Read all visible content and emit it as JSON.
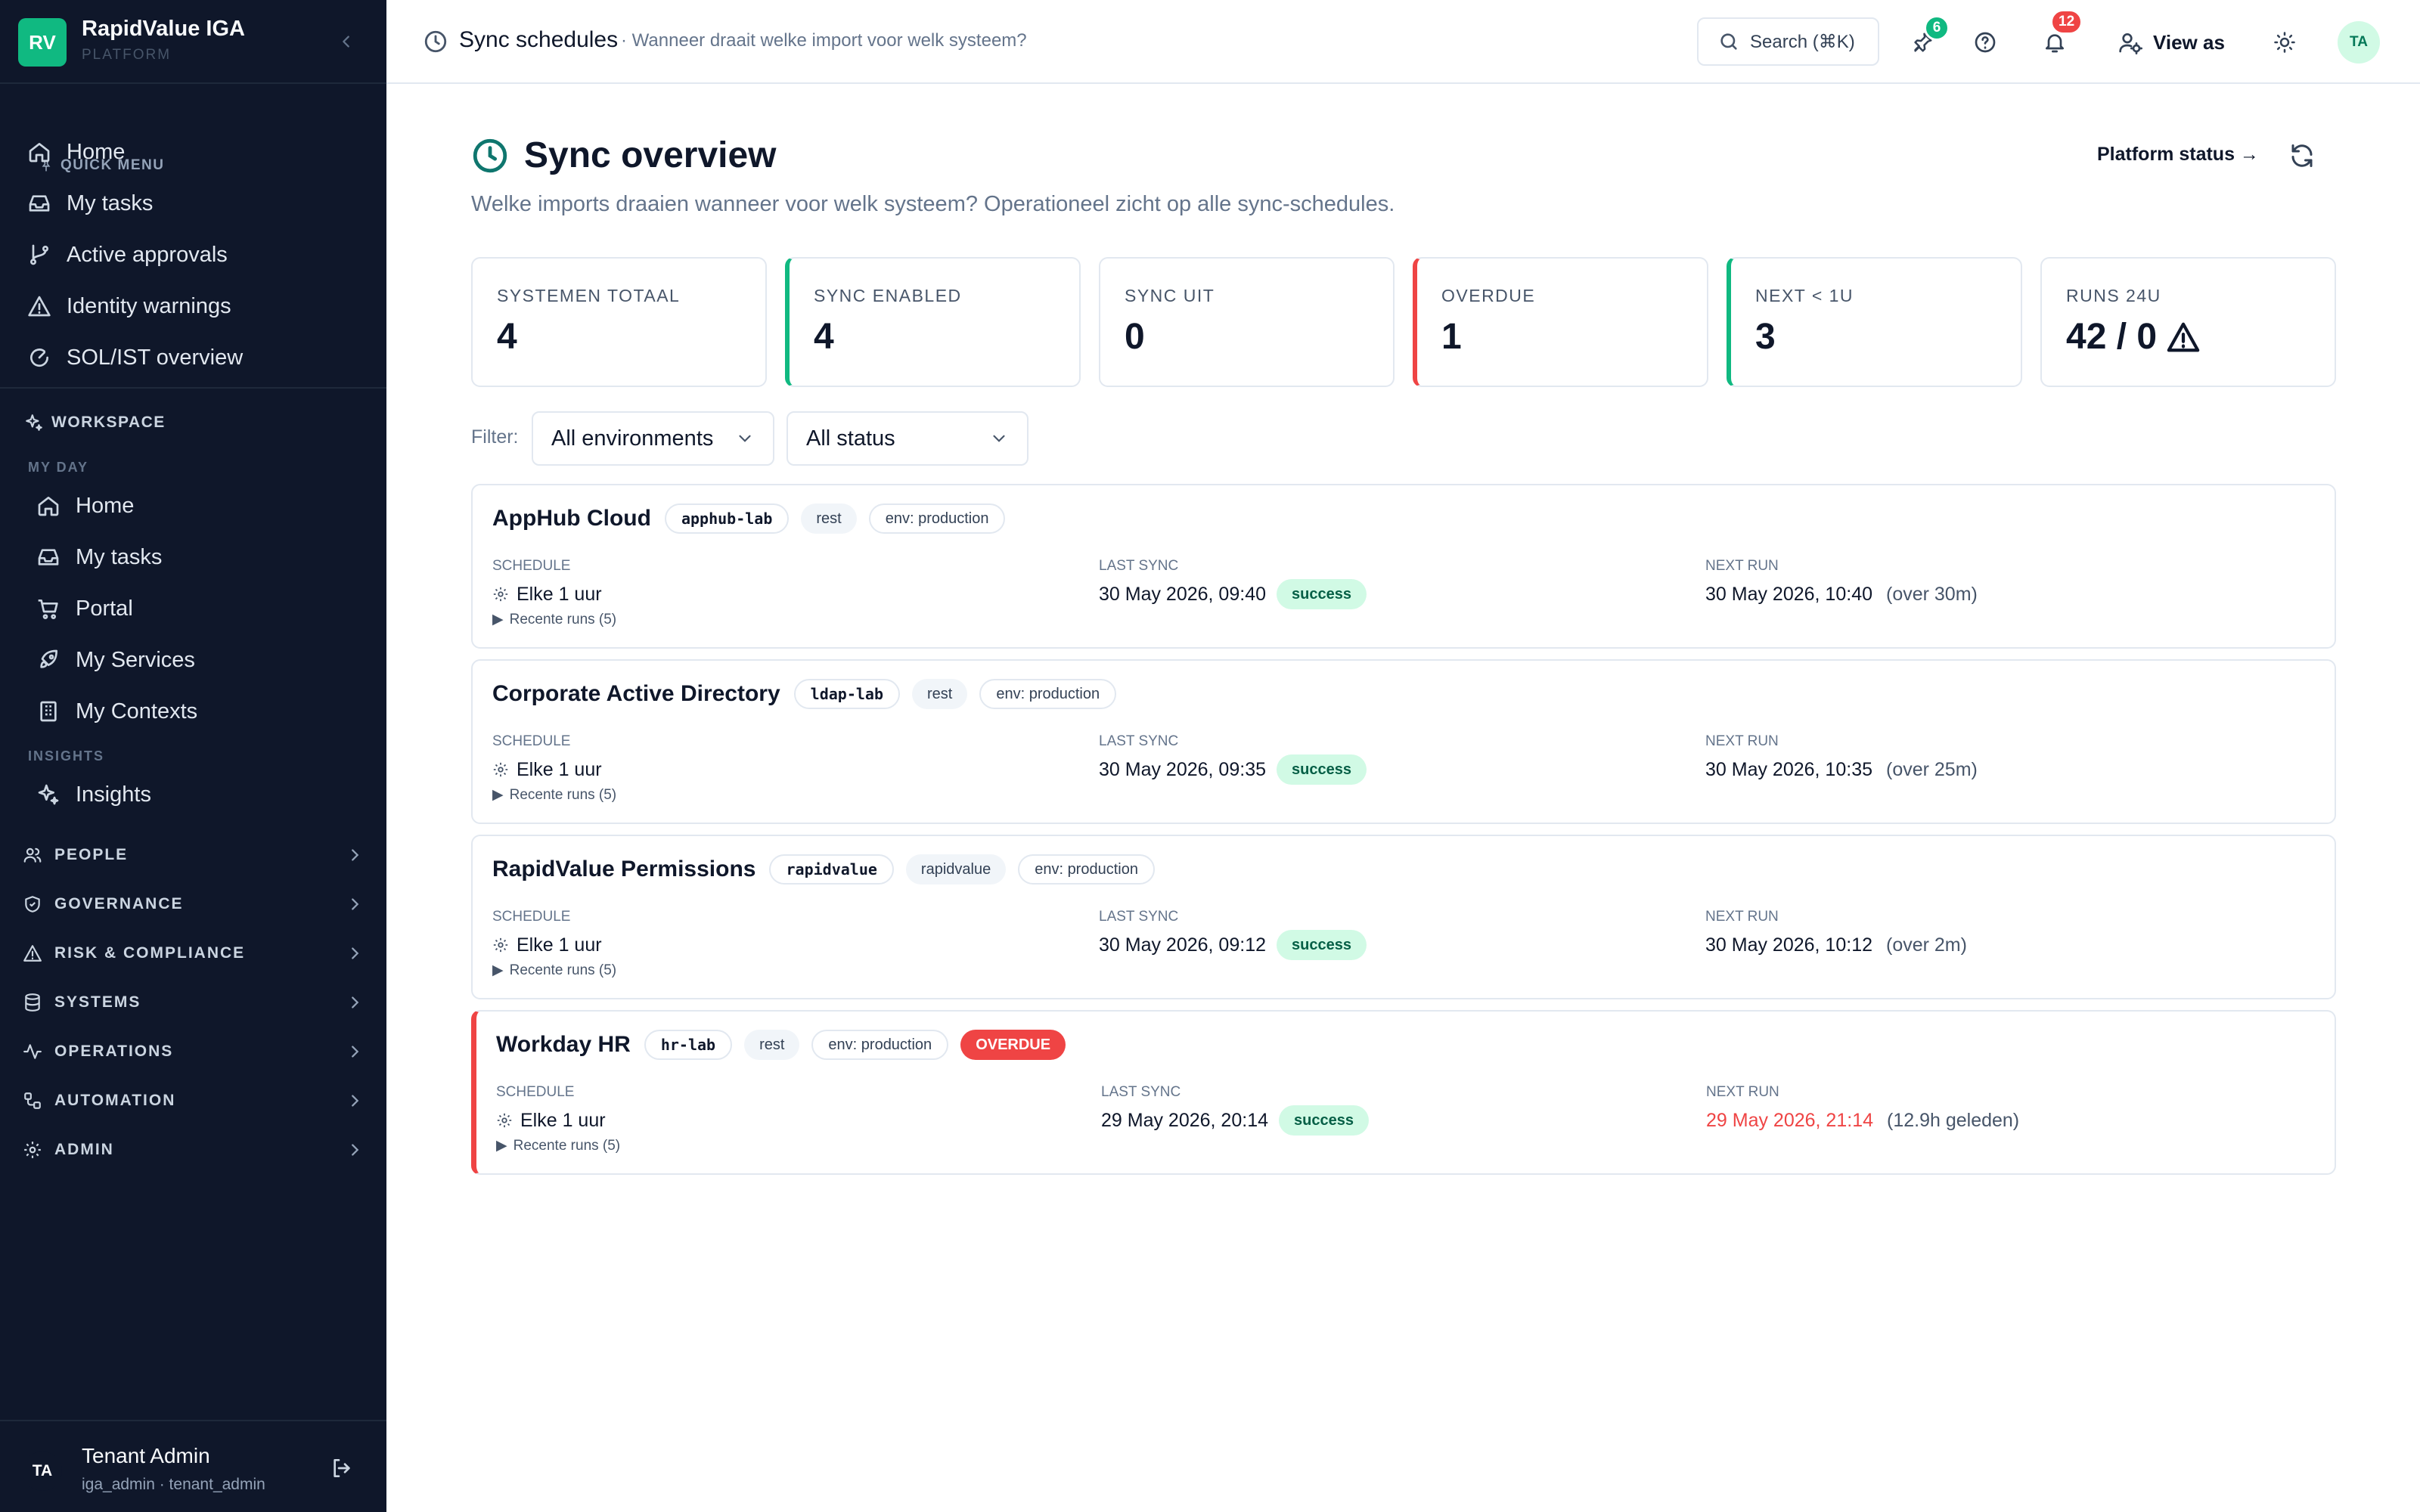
{
  "brand": {
    "logo": "RV",
    "name": "RapidValue IGA",
    "sub": "PLATFORM"
  },
  "quick_menu": {
    "label": "QUICK MENU",
    "items": [
      {
        "label": "Home",
        "icon": "home-icon"
      },
      {
        "label": "My tasks",
        "icon": "inbox-icon"
      },
      {
        "label": "Active approvals",
        "icon": "git-branch-icon"
      },
      {
        "label": "Identity warnings",
        "icon": "warning-icon"
      },
      {
        "label": "SOL/IST overview",
        "icon": "circle-gauge-icon"
      }
    ]
  },
  "workspace": {
    "label": "WORKSPACE",
    "my_day_label": "MY DAY",
    "my_day_items": [
      {
        "label": "Home",
        "icon": "home-icon"
      },
      {
        "label": "My tasks",
        "icon": "inbox-icon"
      },
      {
        "label": "Portal",
        "icon": "cart-icon"
      },
      {
        "label": "My Services",
        "icon": "rocket-icon"
      },
      {
        "label": "My Contexts",
        "icon": "building-icon"
      }
    ],
    "insights_label": "INSIGHTS",
    "insights_items": [
      {
        "label": "Insights",
        "icon": "sparkles-icon"
      }
    ]
  },
  "groups": [
    {
      "label": "PEOPLE",
      "icon": "people-icon"
    },
    {
      "label": "GOVERNANCE",
      "icon": "shield-icon"
    },
    {
      "label": "RISK & COMPLIANCE",
      "icon": "warning-icon"
    },
    {
      "label": "SYSTEMS",
      "icon": "database-icon"
    },
    {
      "label": "OPERATIONS",
      "icon": "activity-icon"
    },
    {
      "label": "AUTOMATION",
      "icon": "workflow-icon"
    },
    {
      "label": "ADMIN",
      "icon": "gear-icon"
    }
  ],
  "user": {
    "initials": "TA",
    "name": "Tenant Admin",
    "role": "iga_admin · tenant_admin"
  },
  "topbar": {
    "title": "Sync schedules",
    "subtitle": "· Wanneer draait welke import voor welk systeem?",
    "search": "Search (⌘K)",
    "pin_badge": "6",
    "notif_badge": "12",
    "view_as": "View as",
    "avatar": "TA"
  },
  "page": {
    "title": "Sync overview",
    "description": "Welke imports draaien wanneer voor welk systeem? Operationeel zicht op alle sync-schedules.",
    "platform_status": "Platform status →"
  },
  "stats": [
    {
      "label": "SYSTEMEN TOTAAL",
      "value": "4",
      "accent": "none"
    },
    {
      "label": "SYNC ENABLED",
      "value": "4",
      "accent": "green"
    },
    {
      "label": "SYNC UIT",
      "value": "0",
      "accent": "none"
    },
    {
      "label": "OVERDUE",
      "value": "1",
      "accent": "red"
    },
    {
      "label": "NEXT < 1U",
      "value": "3",
      "accent": "green"
    },
    {
      "label": "RUNS 24U",
      "value": "42 / 0",
      "accent": "none"
    }
  ],
  "filters": {
    "label": "Filter:",
    "environment": "All environments",
    "status": "All status"
  },
  "columns": {
    "schedule": "SCHEDULE",
    "last_sync": "LAST SYNC",
    "next_run": "NEXT RUN"
  },
  "systems": [
    {
      "name": "AppHub Cloud",
      "code": "apphub-lab",
      "type": "rest",
      "env": "env: production",
      "overdue": "",
      "schedule": "Elke 1 uur",
      "last_sync": "30 May 2026, 09:40",
      "status": "success",
      "next_run": "30 May 2026, 10:40",
      "next_rel": "(over 30m)",
      "runs": "Recente runs (5)"
    },
    {
      "name": "Corporate Active Directory",
      "code": "ldap-lab",
      "type": "rest",
      "env": "env: production",
      "overdue": "",
      "schedule": "Elke 1 uur",
      "last_sync": "30 May 2026, 09:35",
      "status": "success",
      "next_run": "30 May 2026, 10:35",
      "next_rel": "(over 25m)",
      "runs": "Recente runs (5)"
    },
    {
      "name": "RapidValue Permissions",
      "code": "rapidvalue",
      "type": "rapidvalue",
      "env": "env: production",
      "overdue": "",
      "schedule": "Elke 1 uur",
      "last_sync": "30 May 2026, 09:12",
      "status": "success",
      "next_run": "30 May 2026, 10:12",
      "next_rel": "(over 2m)",
      "runs": "Recente runs (5)"
    },
    {
      "name": "Workday HR",
      "code": "hr-lab",
      "type": "rest",
      "env": "env: production",
      "overdue": "OVERDUE",
      "schedule": "Elke 1 uur",
      "last_sync": "29 May 2026, 20:14",
      "status": "success",
      "next_run": "29 May 2026, 21:14",
      "next_rel": "(12.9h geleden)",
      "runs": "Recente runs (5)"
    }
  ],
  "colors": {
    "accent": "#10b981",
    "danger": "#ef4444",
    "sidebar": "#0f172a"
  }
}
